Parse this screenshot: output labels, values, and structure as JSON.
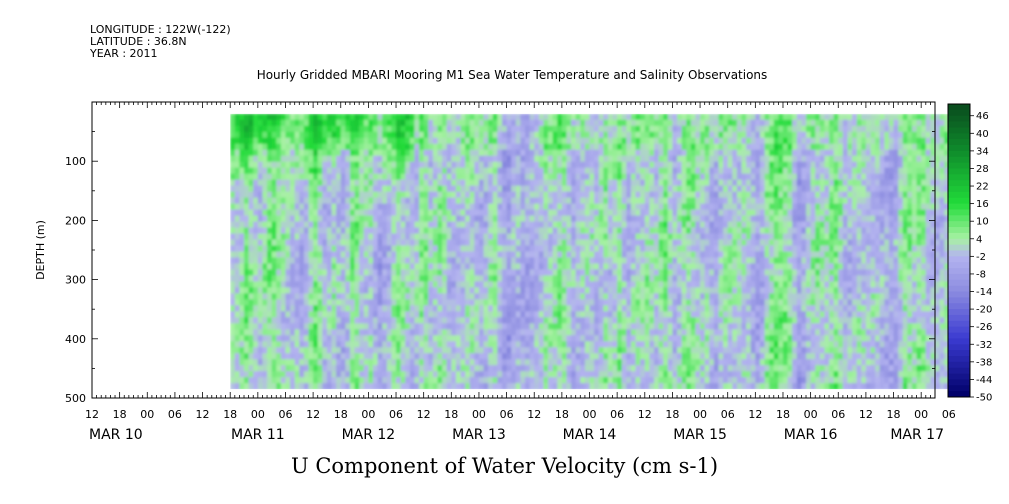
{
  "header": {
    "longitude": "LONGITUDE : 122W(-122)",
    "latitude": "LATITUDE : 36.8N",
    "year": "YEAR : 2011"
  },
  "subtitle": "Hourly Gridded MBARI Mooring M1 Sea Water Temperature and Salinity Observations",
  "chart_data": {
    "type": "heatmap",
    "title": "U Component of Water Velocity (cm s-1)",
    "xlabel": "",
    "ylabel": "DEPTH (m)",
    "y_axis": {
      "range": [
        500,
        0
      ],
      "ticks": [
        100,
        200,
        300,
        400,
        500
      ],
      "inverted": true
    },
    "x_axis": {
      "range_hours": [
        -12,
        171
      ],
      "hour_tick_labels": [
        "12",
        "18",
        "00",
        "06",
        "12",
        "18",
        "00",
        "06",
        "12",
        "18",
        "00",
        "06",
        "12",
        "18",
        "00",
        "06",
        "12",
        "18",
        "00",
        "06",
        "12",
        "18",
        "00",
        "06",
        "12",
        "18",
        "00",
        "06",
        "12",
        "18",
        "00",
        "06"
      ],
      "date_labels": [
        "MAR 10",
        "MAR 11",
        "MAR 12",
        "MAR 13",
        "MAR 14",
        "MAR 15",
        "MAR 16",
        "MAR 17"
      ]
    },
    "data_extent": {
      "time_start": "MAR 10 18",
      "time_end": "MAR 17 10",
      "depth_min": 20,
      "depth_max": 485
    },
    "colorbar": {
      "labels": [
        "46",
        "40",
        "34",
        "28",
        "22",
        "16",
        "10",
        "4",
        "-2",
        "-8",
        "-14",
        "-20",
        "-26",
        "-32",
        "-38",
        "-44",
        "-50"
      ],
      "range": [
        -50,
        50
      ]
    },
    "colors": {
      "strong_positive": "#0a4a1e",
      "positive": "#22dc3a",
      "weak_positive": "#a8f2a4",
      "weak_negative": "#b4b4f0",
      "negative": "#8c8ce0",
      "strong_negative": "#000066"
    }
  }
}
